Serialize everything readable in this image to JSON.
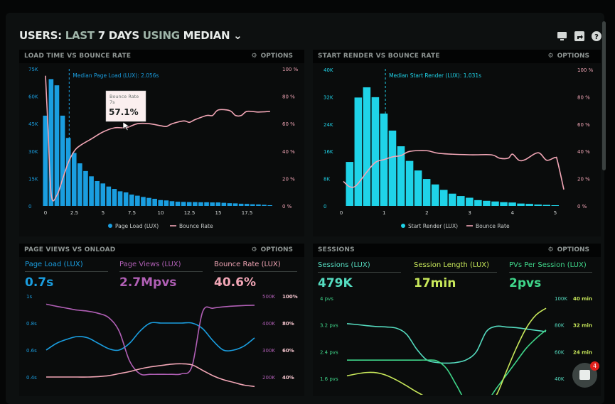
{
  "header": {
    "title_parts": [
      "USERS:",
      "LAST",
      "7 DAYS",
      "USING",
      "MEDIAN"
    ],
    "icons": [
      "monitor-icon",
      "share-icon",
      "help-icon"
    ]
  },
  "options_label": "OPTIONS",
  "colors": {
    "blue": "#1a9ee0",
    "cyan": "#1fd3e8",
    "pink": "#f2a6b6",
    "purple": "#b05fb5",
    "teal": "#55dcc0",
    "green": "#3fd68a",
    "lime": "#c8e85a"
  },
  "chart_data": [
    {
      "type": "bar",
      "title": "LOAD TIME VS BOUNCE RATE",
      "annotation": "Median Page Load (LUX): 2.056s",
      "median": 2.056,
      "x": [
        0,
        0.5,
        1,
        1.5,
        2,
        2.5,
        3,
        3.5,
        4,
        4.5,
        5,
        5.5,
        6,
        6.5,
        7,
        7.5,
        8,
        8.5,
        9,
        9.5,
        10,
        10.5,
        11,
        11.5,
        12,
        12.5,
        13,
        13.5,
        14,
        14.5,
        15,
        15.5,
        16,
        16.5,
        17,
        17.5,
        18,
        18.5,
        19,
        19.5
      ],
      "series": [
        {
          "name": "Page Load (LUX)",
          "axis": "left",
          "type": "bar",
          "values": [
            49400,
            69400,
            66000,
            49400,
            37200,
            29000,
            23300,
            19100,
            16200,
            13600,
            12300,
            10600,
            9300,
            8000,
            7400,
            6200,
            5600,
            4900,
            4400,
            3900,
            3200,
            3000,
            2600,
            2300,
            2200,
            2100,
            2100,
            2000,
            2000,
            1900,
            1900,
            1700,
            1500,
            1400,
            1200,
            1100,
            900,
            800,
            600,
            400
          ]
        },
        {
          "name": "Bounce Rate",
          "axis": "right",
          "type": "line",
          "x": [
            0,
            0.2,
            0.5,
            1,
            1.5,
            2,
            2.5,
            3,
            4,
            5,
            6,
            7,
            8,
            9,
            10,
            10.5,
            11,
            12,
            12.5,
            13,
            14,
            14.5,
            15,
            16,
            16.5,
            17,
            17.5,
            18.5,
            19.5
          ],
          "values": [
            95,
            60,
            8,
            8,
            20,
            32,
            40,
            44,
            49,
            54,
            57,
            57.1,
            60,
            60,
            58.5,
            58,
            60,
            62,
            61,
            63,
            66,
            66,
            70,
            69.5,
            66,
            66,
            69,
            68.5,
            69
          ]
        }
      ],
      "yleft_ticks": [
        "0",
        "15K",
        "30K",
        "45K",
        "60K",
        "75K"
      ],
      "ylim_left": [
        0,
        75000
      ],
      "yright_ticks": [
        "0 %",
        "20 %",
        "40 %",
        "60 %",
        "80 %",
        "100 %"
      ],
      "ylim_right": [
        0,
        100
      ],
      "xticks": [
        "0",
        "2.5",
        "5",
        "7.5",
        "10",
        "12.5",
        "15",
        "17.5"
      ],
      "xtick_values": [
        0,
        2.5,
        5,
        7.5,
        10,
        12.5,
        15,
        17.5
      ],
      "tooltip": {
        "label": "Bounce Rate",
        "x_label": "7s",
        "value": "57.1%"
      },
      "legend": "bottom"
    },
    {
      "type": "bar",
      "title": "START RENDER VS BOUNCE RATE",
      "annotation": "Median Start Render (LUX): 1.031s",
      "median": 1.031,
      "x": [
        0.2,
        0.4,
        0.6,
        0.8,
        1.0,
        1.2,
        1.4,
        1.6,
        1.8,
        2.0,
        2.2,
        2.4,
        2.6,
        2.8,
        3.0,
        3.2,
        3.4,
        3.6,
        3.8,
        4.0,
        4.2,
        4.4,
        4.6,
        4.8,
        5.0
      ],
      "series": [
        {
          "name": "Start Render (LUX)",
          "axis": "left",
          "type": "bar",
          "values": [
            12900,
            31800,
            34800,
            31900,
            27100,
            22100,
            17500,
            13200,
            10400,
            7900,
            6300,
            4700,
            3600,
            2900,
            2400,
            1700,
            1500,
            1300,
            1100,
            1000,
            700,
            600,
            400,
            300,
            200
          ]
        },
        {
          "name": "Bounce Rate",
          "axis": "right",
          "type": "line",
          "x": [
            0.05,
            0.2,
            0.35,
            0.6,
            0.8,
            1.0,
            1.2,
            1.4,
            1.6,
            2.0,
            2.3,
            3.0,
            3.5,
            3.7,
            3.9,
            4.0,
            4.15,
            4.3,
            4.6,
            4.8,
            5.0,
            5.05,
            5.2
          ],
          "values": [
            18,
            14,
            15,
            25,
            32,
            34,
            36,
            37,
            40,
            40.5,
            38.5,
            37.5,
            37.5,
            35,
            35,
            38,
            33.5,
            34,
            39,
            33.5,
            35.5,
            33,
            12
          ]
        }
      ],
      "yleft_ticks": [
        "0",
        "8K",
        "16K",
        "24K",
        "32K",
        "40K"
      ],
      "ylim_left": [
        0,
        40000
      ],
      "yright_ticks": [
        "0 %",
        "20 %",
        "40 %",
        "60 %",
        "80 %",
        "100 %"
      ],
      "ylim_right": [
        0,
        100
      ],
      "xticks": [
        "0",
        "1",
        "2",
        "3",
        "4",
        "5"
      ],
      "xtick_values": [
        0,
        1,
        2,
        3,
        4,
        5
      ],
      "legend": "bottom"
    },
    {
      "type": "line",
      "title": "PAGE VIEWS VS ONLOAD",
      "kpis": [
        {
          "label": "Page Load (LUX)",
          "value": "0.7s"
        },
        {
          "label": "Page Views (LUX)",
          "value": "2.7Mpvs"
        },
        {
          "label": "Bounce Rate (LUX)",
          "value": "40.6%"
        }
      ],
      "yleft_ticks": [
        "1s",
        "0.8s",
        "0.6s",
        "0.4s"
      ],
      "yright1_ticks": [
        "500K",
        "400K",
        "300K",
        "200K"
      ],
      "yright2_ticks": [
        "100%",
        "80%",
        "60%",
        "40%"
      ],
      "series": [
        {
          "name": "Page Load (LUX)",
          "unit": "s",
          "values": [
            0.6,
            0.65,
            0.68,
            0.7,
            0.69,
            0.65,
            0.61,
            0.6,
            0.65,
            0.74,
            0.8,
            0.8,
            0.8,
            0.8,
            0.8,
            0.76,
            0.67,
            0.6,
            0.6,
            0.63,
            0.69
          ]
        },
        {
          "name": "Page Views (LUX)",
          "unit": "K",
          "values": [
            470,
            462,
            455,
            448,
            444,
            436,
            420,
            370,
            260,
            212,
            210,
            210,
            210,
            212,
            240,
            440,
            455,
            460,
            463,
            465,
            466
          ]
        },
        {
          "name": "Bounce Rate (LUX)",
          "unit": "%",
          "values": [
            40,
            40,
            40,
            40,
            40,
            40.3,
            41,
            42.5,
            44,
            46,
            47.5,
            48.5,
            49.5,
            49.8,
            49,
            45,
            41,
            38,
            36,
            34,
            33
          ]
        }
      ]
    },
    {
      "type": "line",
      "title": "SESSIONS",
      "kpis": [
        {
          "label": "Sessions (LUX)",
          "value": "479K"
        },
        {
          "label": "Session Length (LUX)",
          "value": "17min"
        },
        {
          "label": "PVs Per Session (LUX)",
          "value": "2pvs"
        }
      ],
      "yleft_ticks": [
        "4 pvs",
        "3.2 pvs",
        "2.4 pvs",
        "1.6 pvs"
      ],
      "yright1_ticks": [
        "100K",
        "80K",
        "60K",
        "40K"
      ],
      "yright2_ticks": [
        "40 min",
        "32 min",
        "24 min"
      ],
      "series": [
        {
          "name": "Sessions (LUX)",
          "unit": "K",
          "values": [
            81,
            80.3,
            79.5,
            78.8,
            78.5,
            77.5,
            73,
            62,
            54,
            52,
            51.5,
            52,
            54,
            60,
            75,
            79,
            78.5,
            78,
            77,
            76,
            75
          ]
        },
        {
          "name": "PVs Per Session (LUX)",
          "unit": "pvs",
          "values": [
            2.15,
            2.15,
            2.15,
            2.15,
            2.15,
            2.15,
            2.15,
            2.15,
            2.15,
            2.13,
            1.9,
            1.4,
            0.9,
            0.8,
            0.9,
            1.3,
            1.7,
            2.1,
            2.5,
            2.8,
            3.05
          ]
        },
        {
          "name": "Session Length (LUX)",
          "unit": "min",
          "values": [
            16.8,
            17.4,
            17.8,
            17.7,
            16.9,
            15.5,
            13.8,
            12,
            10.5,
            9.8,
            9,
            8.5,
            8,
            8.2,
            8.5,
            11,
            18,
            25,
            31,
            35,
            37
          ]
        }
      ]
    }
  ],
  "chat": {
    "badge_count": "4"
  }
}
